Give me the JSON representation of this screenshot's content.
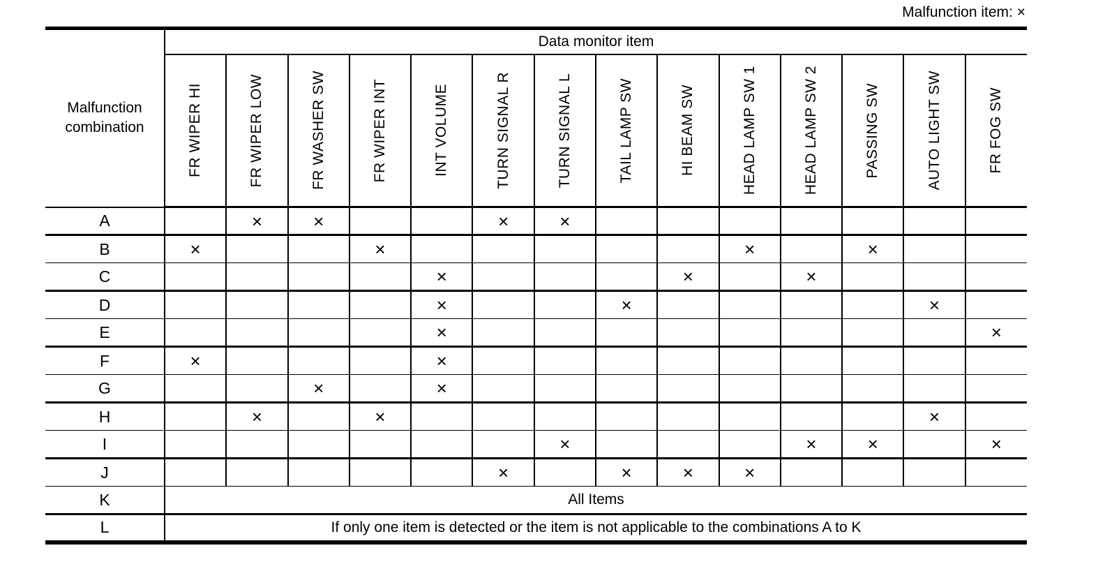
{
  "page": {
    "legend": "Malfunction item: ×"
  },
  "table": {
    "corner_label": "Malfunction combination",
    "group_header": "Data monitor item",
    "mark": "×",
    "columns": [
      "FR WIPER HI",
      "FR WIPER LOW",
      "FR WASHER SW",
      "FR WIPER INT",
      "INT VOLUME",
      "TURN SIGNAL R",
      "TURN SIGNAL L",
      "TAIL LAMP SW",
      "HI BEAM SW",
      "HEAD LAMP SW 1",
      "HEAD LAMP SW 2",
      "PASSING SW",
      "AUTO LIGHT SW",
      "FR FOG SW"
    ],
    "rows": [
      {
        "label": "A",
        "cells": [
          "",
          "×",
          "×",
          "",
          "",
          "×",
          "×",
          "",
          "",
          "",
          "",
          "",
          "",
          ""
        ]
      },
      {
        "label": "B",
        "cells": [
          "×",
          "",
          "",
          "×",
          "",
          "",
          "",
          "",
          "",
          "×",
          "",
          "×",
          "",
          ""
        ]
      },
      {
        "label": "C",
        "cells": [
          "",
          "",
          "",
          "",
          "×",
          "",
          "",
          "",
          "×",
          "",
          "×",
          "",
          "",
          ""
        ]
      },
      {
        "label": "D",
        "cells": [
          "",
          "",
          "",
          "",
          "×",
          "",
          "",
          "×",
          "",
          "",
          "",
          "",
          "×",
          ""
        ]
      },
      {
        "label": "E",
        "cells": [
          "",
          "",
          "",
          "",
          "×",
          "",
          "",
          "",
          "",
          "",
          "",
          "",
          "",
          "×"
        ]
      },
      {
        "label": "F",
        "cells": [
          "×",
          "",
          "",
          "",
          "×",
          "",
          "",
          "",
          "",
          "",
          "",
          "",
          "",
          ""
        ]
      },
      {
        "label": "G",
        "cells": [
          "",
          "",
          "×",
          "",
          "×",
          "",
          "",
          "",
          "",
          "",
          "",
          "",
          "",
          ""
        ]
      },
      {
        "label": "H",
        "cells": [
          "",
          "×",
          "",
          "×",
          "",
          "",
          "",
          "",
          "",
          "",
          "",
          "",
          "×",
          ""
        ]
      },
      {
        "label": "I",
        "cells": [
          "",
          "",
          "",
          "",
          "",
          "",
          "×",
          "",
          "",
          "",
          "×",
          "×",
          "",
          "×"
        ]
      },
      {
        "label": "J",
        "cells": [
          "",
          "",
          "",
          "",
          "",
          "×",
          "",
          "×",
          "×",
          "×",
          "",
          "",
          "",
          ""
        ]
      },
      {
        "label": "K",
        "span_text": "All Items"
      },
      {
        "label": "L",
        "span_text": "If only one item is detected or the item is not applicable to the combinations A to K"
      }
    ]
  }
}
